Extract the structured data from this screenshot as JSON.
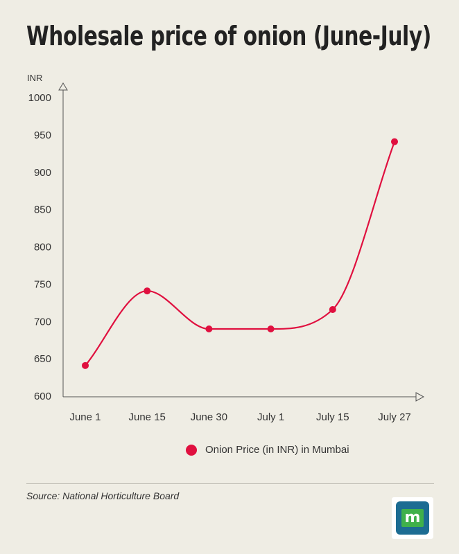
{
  "title": "Wholesale price of onion (June-July)",
  "chart_data": {
    "type": "line",
    "ylabel": "INR",
    "ylim": [
      600,
      1000
    ],
    "yticks": [
      600,
      650,
      700,
      750,
      800,
      850,
      900,
      950,
      1000
    ],
    "categories": [
      "June 1",
      "June 15",
      "June 30",
      "July 1",
      "July 15",
      "July 27"
    ],
    "series": [
      {
        "name": "Onion Price (in INR) in Mumbai",
        "values": [
          641,
          741,
          690,
          690,
          716,
          941
        ],
        "color": "#e0103f"
      }
    ],
    "grid": false,
    "legend_position": "bottom"
  },
  "legend": {
    "label": "Onion Price (in INR) in Mumbai"
  },
  "source": "Source: National Horticulture Board",
  "logo": {
    "icon": "moneycontrol-logo",
    "letter": "m"
  },
  "colors": {
    "background": "#efede4",
    "line": "#e0103f",
    "logo_blue": "#1c6c92",
    "logo_green": "#3fb04a"
  }
}
